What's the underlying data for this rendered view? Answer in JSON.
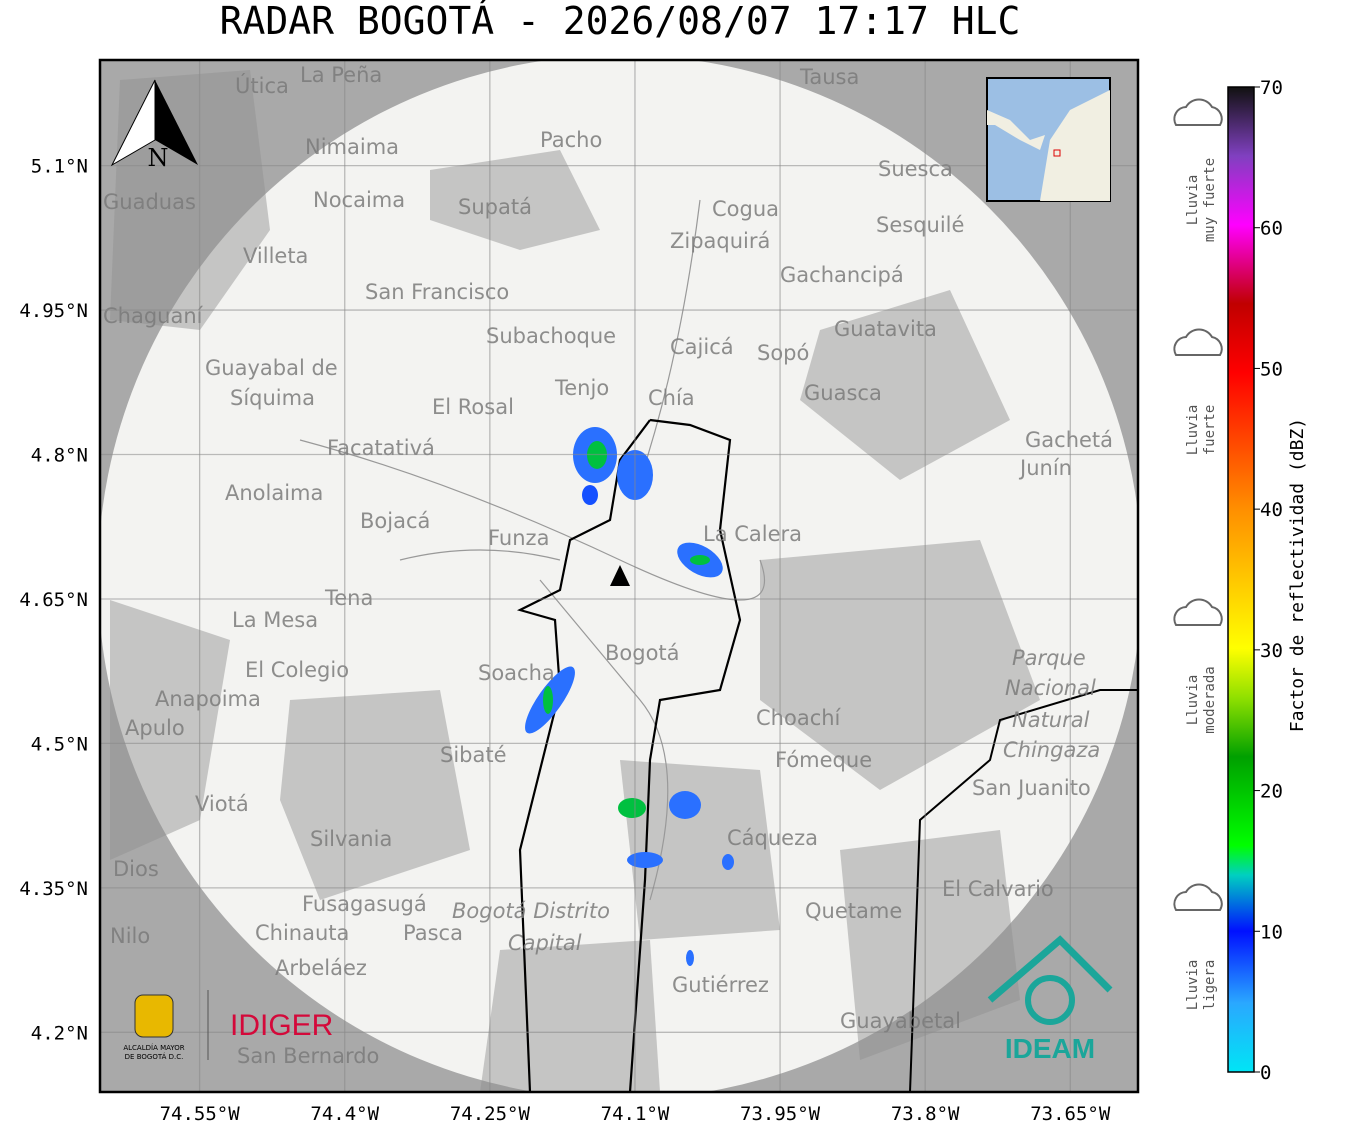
{
  "title": "RADAR BOGOTÁ - 2026/08/07 17:17 HLC",
  "map": {
    "xlim": [
      -74.653,
      -73.58
    ],
    "ylim": [
      4.138,
      5.2097
    ],
    "xticks": [
      {
        "value": -74.55,
        "label": "74.55°W"
      },
      {
        "value": -74.4,
        "label": "74.4°W"
      },
      {
        "value": -74.25,
        "label": "74.25°W"
      },
      {
        "value": -74.1,
        "label": "74.1°W"
      },
      {
        "value": -73.95,
        "label": "73.95°W"
      },
      {
        "value": -73.8,
        "label": "73.8°W"
      },
      {
        "value": -73.65,
        "label": "73.65°W"
      }
    ],
    "yticks": [
      {
        "value": 4.2,
        "label": "4.2°N"
      },
      {
        "value": 4.35,
        "label": "4.35°N"
      },
      {
        "value": 4.5,
        "label": "4.5°N"
      },
      {
        "value": 4.65,
        "label": "4.65°N"
      },
      {
        "value": 4.8,
        "label": "4.8°N"
      },
      {
        "value": 4.95,
        "label": "4.95°N"
      },
      {
        "value": 5.1,
        "label": "5.1°N"
      }
    ],
    "north": "N",
    "places": [
      "Útica",
      "La Peña",
      "Tausa",
      "Pacho",
      "Nimaima",
      "Guaduas",
      "Nocaima",
      "Supatá",
      "Cogua",
      "Suesca",
      "Zipaquirá",
      "Sesquilé",
      "Villeta",
      "Gachancipá",
      "San Francisco",
      "Chaguaní",
      "Subachoque",
      "Guatavita",
      "Cajicá",
      "Sopó",
      "Guayabal de",
      "Síquima",
      "Tenjo",
      "Chía",
      "Guasca",
      "El Rosal",
      "Facatativá",
      "Gachetá",
      "Junín",
      "Anolaima",
      "Bojacá",
      "Funza",
      "La Calera",
      "Tena",
      "La Mesa",
      "Bogotá",
      "Soacha",
      "El Colegio",
      "Parque",
      "Nacional",
      "Natural",
      "Chingaza",
      "Anapoima",
      "Apulo",
      "Choachí",
      "Sibaté",
      "Fómeque",
      "San Juanito",
      "Viotá",
      "Silvania",
      "Cáqueza",
      "Dios",
      "El Calvario",
      "Fusagasugá",
      "Bogotá Distrito",
      "Capital",
      "Quetame",
      "Nilo",
      "Chinauta",
      "Pasca",
      "Arbeláez",
      "Gutiérrez",
      "Guayabetal",
      "San Bernardo"
    ],
    "logos": {
      "alcaldia": [
        "ALCALDÍA MAYOR",
        "DE BOGOTÁ D.C."
      ],
      "idiger": "IDIGER",
      "ideam": "IDEAM"
    }
  },
  "colorbar": {
    "label": "Factor de reflectividad (dBZ)",
    "lim": [
      0,
      70
    ],
    "ticks": [
      0,
      10,
      20,
      30,
      40,
      50,
      60,
      70
    ],
    "categories": [
      [
        "Lluvia",
        "muy fuerte"
      ],
      [
        "Lluvia",
        "fuerte"
      ],
      [
        "Lluvia",
        "moderada"
      ],
      [
        "Lluvia",
        "ligera"
      ]
    ]
  }
}
